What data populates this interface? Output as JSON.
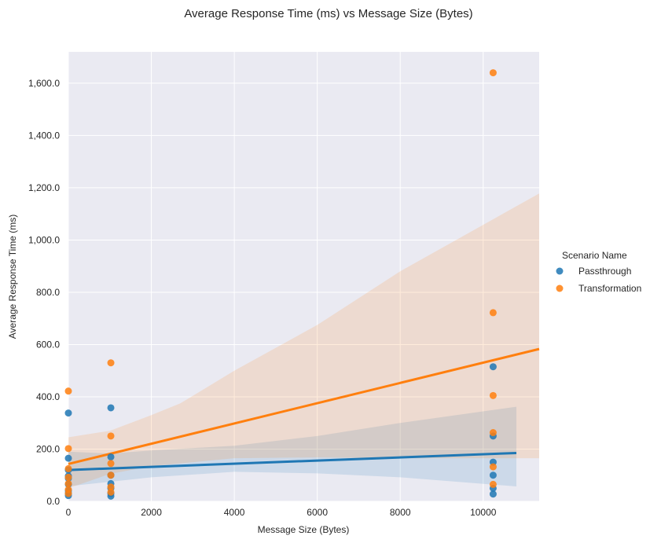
{
  "chart_data": {
    "type": "scatter",
    "title": "Average Response Time (ms) vs Message Size (Bytes)",
    "xlabel": "Message Size (Bytes)",
    "ylabel": "Average Response Time (ms)",
    "xlim": [
      0,
      11350
    ],
    "ylim": [
      0,
      1720
    ],
    "x_ticks": [
      0,
      2000,
      4000,
      6000,
      8000,
      10000
    ],
    "x_tick_labels": [
      "0",
      "2000",
      "4000",
      "6000",
      "8000",
      "10000"
    ],
    "y_ticks": [
      0,
      200,
      400,
      600,
      800,
      1000,
      1200,
      1400,
      1600
    ],
    "y_tick_labels": [
      "0.0",
      "200.0",
      "400.0",
      "600.0",
      "800.0",
      "1,000.0",
      "1,200.0",
      "1,400.0",
      "1,600.0"
    ],
    "grid": true,
    "legend": {
      "title": "Scenario Name",
      "placement": "right"
    },
    "series": [
      {
        "name": "Passthrough",
        "color": "#1f77b4",
        "points": [
          [
            0,
            338
          ],
          [
            0,
            165
          ],
          [
            0,
            120
          ],
          [
            0,
            97
          ],
          [
            0,
            88
          ],
          [
            0,
            65
          ],
          [
            0,
            40
          ],
          [
            0,
            30
          ],
          [
            0,
            22
          ],
          [
            1024,
            358
          ],
          [
            1024,
            170
          ],
          [
            1024,
            100
          ],
          [
            1024,
            68
          ],
          [
            1024,
            50
          ],
          [
            1024,
            30
          ],
          [
            1024,
            20
          ],
          [
            10240,
            515
          ],
          [
            10240,
            250
          ],
          [
            10240,
            150
          ],
          [
            10240,
            100
          ],
          [
            10240,
            50
          ],
          [
            10240,
            28
          ]
        ],
        "fit": {
          "x_start": 0,
          "x_end": 10800,
          "y_start": 120,
          "y_end": 185
        },
        "ci_band": {
          "x": [
            0,
            1000,
            2000,
            4000,
            6000,
            8000,
            10800
          ],
          "lower": [
            58,
            75,
            92,
            113,
            107,
            92,
            57
          ],
          "upper": [
            190,
            183,
            195,
            213,
            250,
            300,
            362
          ]
        }
      },
      {
        "name": "Transformation",
        "color": "#ff7f0e",
        "points": [
          [
            0,
            422
          ],
          [
            0,
            202
          ],
          [
            0,
            125
          ],
          [
            0,
            92
          ],
          [
            0,
            68
          ],
          [
            0,
            45
          ],
          [
            0,
            30
          ],
          [
            1024,
            530
          ],
          [
            1024,
            250
          ],
          [
            1024,
            145
          ],
          [
            1024,
            100
          ],
          [
            1024,
            55
          ],
          [
            1024,
            35
          ],
          [
            10240,
            1640
          ],
          [
            10240,
            722
          ],
          [
            10240,
            405
          ],
          [
            10240,
            263
          ],
          [
            10240,
            132
          ],
          [
            10240,
            65
          ]
        ],
        "fit": {
          "x_start": 0,
          "x_end": 11350,
          "y_start": 143,
          "y_end": 583
        },
        "ci_band": {
          "x": [
            0,
            1000,
            2000,
            2700,
            4000,
            6000,
            8000,
            11350
          ],
          "lower": [
            50,
            105,
            135,
            145,
            165,
            168,
            165,
            165
          ],
          "upper": [
            245,
            270,
            330,
            375,
            500,
            675,
            880,
            1178
          ]
        }
      }
    ]
  }
}
